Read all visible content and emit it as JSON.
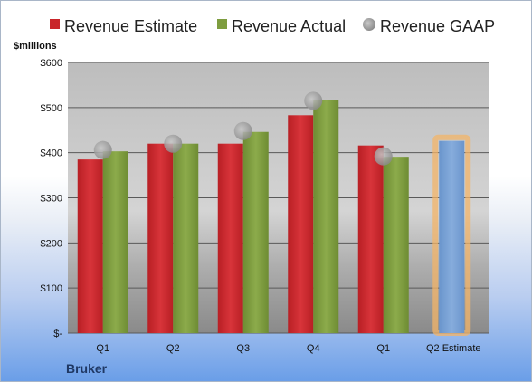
{
  "chart_data": {
    "type": "bar",
    "categories": [
      "Q1",
      "Q2",
      "Q3",
      "Q4",
      "Q1",
      "Q2 Estimate"
    ],
    "series": [
      {
        "name": "Revenue Estimate",
        "values": [
          385,
          420,
          420,
          483,
          416,
          null
        ]
      },
      {
        "name": "Revenue Actual",
        "values": [
          403,
          420,
          446,
          517,
          391,
          426
        ]
      },
      {
        "name": "Revenue GAAP",
        "values": [
          406,
          420,
          448,
          515,
          392,
          null
        ]
      }
    ],
    "highlighted_category": "Q2 Estimate",
    "ylabel": "$millions",
    "ylim": [
      0,
      600
    ],
    "yticks": [
      0,
      100,
      200,
      300,
      400,
      500,
      600
    ],
    "ytick_labels": [
      "$-",
      "$100",
      "$200",
      "$300",
      "$400",
      "$500",
      "$600"
    ],
    "grid": true,
    "legend_position": "top"
  },
  "footer": {
    "company": "Bruker"
  },
  "colors": {
    "estimate": "#c9252a",
    "actual": "#7e9d3f",
    "gaap": "#a9a9a9",
    "forecast": "#76a0d3",
    "forecast_glow": "#f3b468"
  }
}
